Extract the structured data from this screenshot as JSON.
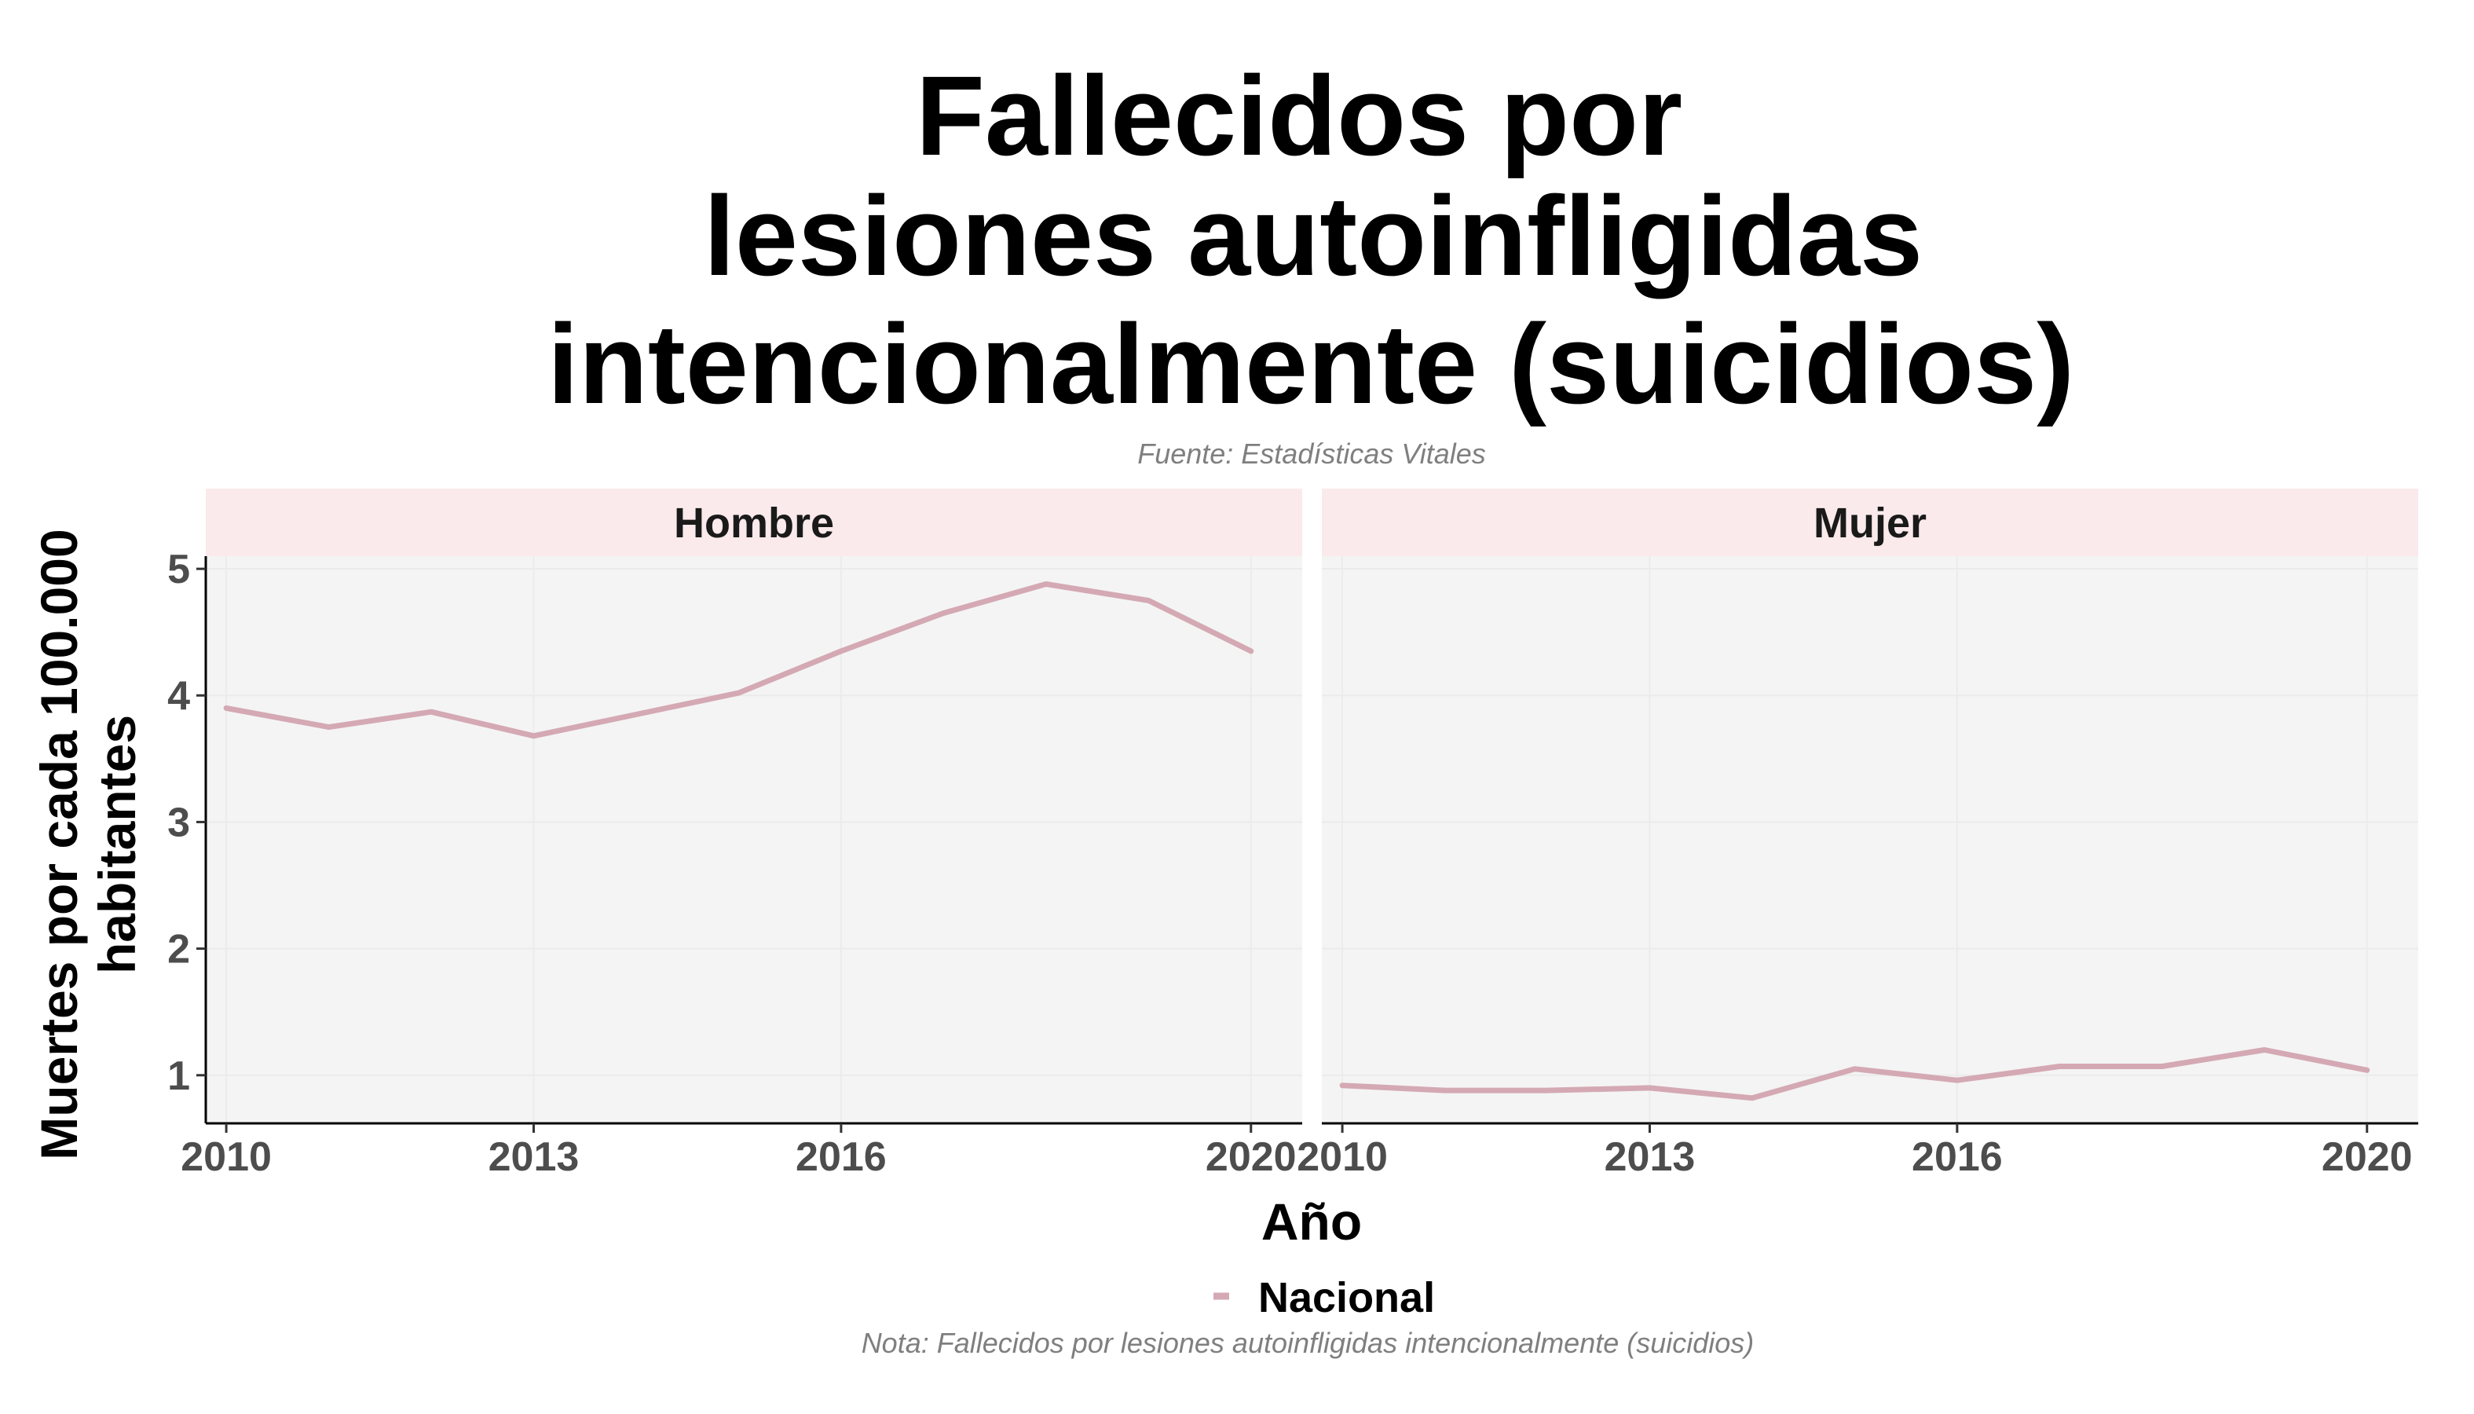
{
  "chart_data": {
    "type": "line",
    "title_lines": [
      "Fallecidos por",
      "lesiones autoinfligidas",
      "intencionalmente (suicidios)"
    ],
    "subtitle": "Fuente: Estadísticas Vitales",
    "xlabel": "Año",
    "ylabel_lines": [
      "Muertes por cada 100.000",
      "habitantes"
    ],
    "caption": "Nota: Fallecidos por lesiones autoinfligidas intencionalmente (suicidios)",
    "legend": {
      "position": "bottom",
      "entries": [
        {
          "label": "Nacional",
          "color": "#d4a9b4"
        }
      ]
    },
    "x": [
      2010,
      2011,
      2012,
      2013,
      2014,
      2015,
      2016,
      2017,
      2018,
      2019,
      2020
    ],
    "xlim": [
      2009.8,
      2020.5
    ],
    "ylim": [
      0.62,
      5.1
    ],
    "x_ticks": [
      "2010",
      "2013",
      "2016",
      "2020"
    ],
    "y_ticks": [
      "1",
      "2",
      "3",
      "4",
      "5"
    ],
    "grid": true,
    "colors": {
      "line": "#d4a9b4",
      "panel_bg": "#f4f4f4",
      "strip_bg": "#faeaec",
      "grid": "#ebebeb"
    },
    "panels": [
      {
        "name": "Hombre",
        "series": [
          {
            "name": "Nacional",
            "values": [
              3.9,
              3.75,
              3.87,
              3.68,
              3.85,
              4.02,
              4.35,
              4.65,
              4.88,
              4.75,
              4.35
            ]
          }
        ]
      },
      {
        "name": "Mujer",
        "series": [
          {
            "name": "Nacional",
            "values": [
              0.92,
              0.88,
              0.88,
              0.9,
              0.82,
              1.05,
              0.96,
              1.07,
              1.07,
              1.2,
              1.04
            ]
          }
        ]
      }
    ]
  }
}
